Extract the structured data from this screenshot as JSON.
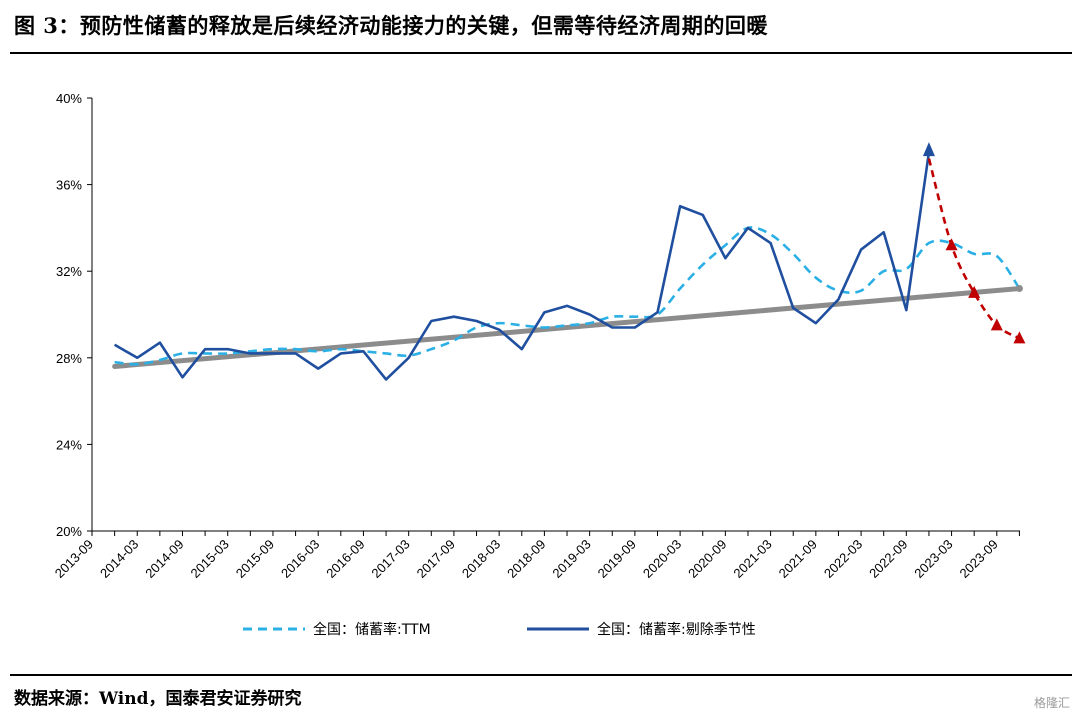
{
  "figure": {
    "title": "图 3：预防性储蓄的释放是后续经济动能接力的关键，但需等待经济周期的回暖",
    "source": "数据来源：Wind，国泰君安证券研究",
    "watermark": "格隆汇"
  },
  "chart_data": {
    "type": "line",
    "ylim": [
      20,
      40
    ],
    "y_ticks": [
      20,
      24,
      28,
      32,
      36,
      40
    ],
    "y_tick_labels": [
      "20%",
      "24%",
      "28%",
      "32%",
      "36%",
      "40%"
    ],
    "x_tick_labels": [
      "2013-09",
      "2014-03",
      "2014-09",
      "2015-03",
      "2015-09",
      "2016-03",
      "2016-09",
      "2017-03",
      "2017-09",
      "2018-03",
      "2018-09",
      "2019-03",
      "2019-09",
      "2020-03",
      "2020-09",
      "2021-03",
      "2021-09",
      "2022-03",
      "2022-09",
      "2023-03",
      "2023-09"
    ],
    "quarters": [
      "2013-12",
      "2014-03",
      "2014-06",
      "2014-09",
      "2014-12",
      "2015-03",
      "2015-06",
      "2015-09",
      "2015-12",
      "2016-03",
      "2016-06",
      "2016-09",
      "2016-12",
      "2017-03",
      "2017-06",
      "2017-09",
      "2017-12",
      "2018-03",
      "2018-06",
      "2018-09",
      "2018-12",
      "2019-03",
      "2019-06",
      "2019-09",
      "2019-12",
      "2020-03",
      "2020-06",
      "2020-09",
      "2020-12",
      "2021-03",
      "2021-06",
      "2021-09",
      "2021-12",
      "2022-03",
      "2022-06",
      "2022-09",
      "2022-12",
      "2023-03",
      "2023-06",
      "2023-09",
      "2023-12"
    ],
    "series": [
      {
        "name": "全国：储蓄率:TTM",
        "color": "#2bb0e6",
        "style": "dashed",
        "values": [
          27.8,
          27.7,
          27.9,
          28.2,
          28.2,
          28.2,
          28.3,
          28.4,
          28.4,
          28.3,
          28.4,
          28.3,
          28.2,
          28.1,
          28.4,
          28.8,
          29.4,
          29.6,
          29.5,
          29.4,
          29.5,
          29.6,
          29.9,
          29.9,
          30.0,
          31.2,
          32.3,
          33.2,
          34.0,
          33.7,
          32.8,
          31.7,
          31.1,
          31.1,
          32.0,
          32.1,
          33.3,
          33.3,
          32.8,
          32.7,
          31.2
        ]
      },
      {
        "name": "全国：储蓄率:剔除季节性",
        "color": "#1f4f9e",
        "style": "solid",
        "values": [
          28.6,
          28.0,
          28.7,
          27.1,
          28.4,
          28.4,
          28.2,
          28.2,
          28.2,
          27.5,
          28.2,
          28.3,
          27.0,
          28.0,
          29.7,
          29.9,
          29.7,
          29.3,
          28.4,
          30.1,
          30.4,
          30.0,
          29.4,
          29.4,
          30.1,
          35.0,
          34.6,
          32.6,
          34.0,
          33.3,
          30.3,
          29.6,
          30.7,
          33.0,
          33.8,
          30.2,
          37.5
        ]
      },
      {
        "name": "趋势线",
        "color": "#8c8c8c",
        "style": "solid-thick",
        "values": [
          27.6,
          31.2
        ]
      },
      {
        "name": "预测",
        "color": "#c00000",
        "style": "dashed-triangle",
        "values": [
          37.2,
          33.2,
          31.0,
          29.5,
          28.9
        ]
      }
    ]
  }
}
